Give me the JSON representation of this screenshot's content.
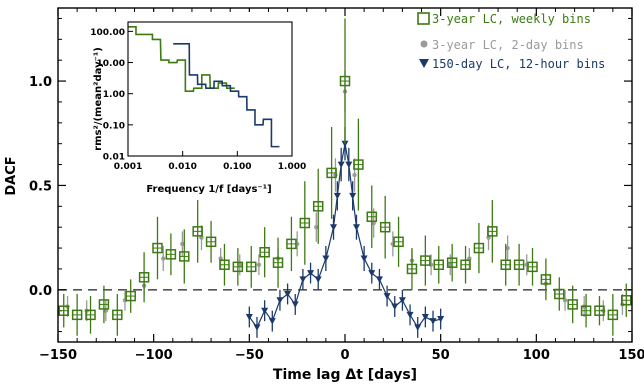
{
  "chart_data": [
    {
      "type": "scatter",
      "xlabel": "Time lag Δt  [days]",
      "ylabel": "DACF",
      "xlim": [
        -150,
        150
      ],
      "ylim": [
        -0.25,
        1.35
      ],
      "x_ticks": [
        -150,
        -100,
        -50,
        0,
        50,
        100,
        150
      ],
      "y_ticks": [
        0.0,
        0.5,
        1.0
      ],
      "y_tick_labels": [
        "0.0",
        "0.5",
        "1.0"
      ],
      "zero_line": 0,
      "legend_position": "top-right",
      "series": [
        {
          "name": "3-year LC, weekly bins",
          "marker": "open-square",
          "color": "#3d7a12",
          "x": [
            -147,
            -140,
            -133,
            -126,
            -119,
            -112,
            -105,
            -98,
            -91,
            -84,
            -77,
            -70,
            -63,
            -56,
            -49,
            -42,
            -35,
            -28,
            -21,
            -14,
            -7,
            0,
            7,
            14,
            21,
            28,
            35,
            42,
            49,
            56,
            63,
            70,
            77,
            84,
            91,
            98,
            105,
            112,
            119,
            126,
            133,
            140,
            147
          ],
          "y": [
            -0.1,
            -0.12,
            -0.12,
            -0.07,
            -0.12,
            -0.03,
            0.06,
            0.2,
            0.17,
            0.16,
            0.28,
            0.23,
            0.12,
            0.11,
            0.11,
            0.18,
            0.13,
            0.22,
            0.32,
            0.4,
            0.56,
            1.0,
            0.6,
            0.35,
            0.3,
            0.23,
            0.1,
            0.14,
            0.12,
            0.13,
            0.12,
            0.2,
            0.28,
            0.12,
            0.12,
            0.11,
            0.05,
            -0.02,
            -0.07,
            -0.1,
            -0.1,
            -0.12,
            -0.05
          ],
          "err": [
            0.08,
            0.1,
            0.09,
            0.09,
            0.1,
            0.08,
            0.12,
            0.15,
            0.1,
            0.13,
            0.15,
            0.1,
            0.1,
            0.09,
            0.1,
            0.12,
            0.12,
            0.13,
            0.2,
            0.18,
            0.22,
            0.3,
            0.22,
            0.15,
            0.15,
            0.12,
            0.1,
            0.12,
            0.09,
            0.09,
            0.09,
            0.12,
            0.15,
            0.1,
            0.1,
            0.09,
            0.1,
            0.08,
            0.09,
            0.08,
            0.07,
            0.1,
            0.08
          ]
        },
        {
          "name": "3-year LC, 2-day bins",
          "marker": "filled-circle",
          "color": "#9a9a9a",
          "x": [
            -145,
            -135,
            -125,
            -115,
            -105,
            -95,
            -85,
            -75,
            -65,
            -55,
            -45,
            -35,
            -25,
            -15,
            -5,
            0,
            5,
            15,
            25,
            35,
            45,
            55,
            65,
            75,
            85,
            95,
            105,
            115,
            125,
            135,
            145
          ],
          "y": [
            -0.08,
            -0.1,
            -0.1,
            -0.05,
            0.02,
            0.15,
            0.22,
            0.25,
            0.15,
            0.12,
            0.12,
            0.15,
            0.22,
            0.3,
            0.55,
            0.95,
            0.55,
            0.32,
            0.22,
            0.14,
            0.12,
            0.12,
            0.15,
            0.25,
            0.2,
            0.12,
            0.03,
            -0.05,
            -0.08,
            -0.1,
            -0.07
          ],
          "err": [
            0.05,
            0.05,
            0.05,
            0.05,
            0.05,
            0.06,
            0.06,
            0.06,
            0.05,
            0.05,
            0.05,
            0.05,
            0.06,
            0.07,
            0.08,
            0.1,
            0.08,
            0.07,
            0.06,
            0.05,
            0.05,
            0.05,
            0.05,
            0.06,
            0.06,
            0.05,
            0.05,
            0.05,
            0.05,
            0.05,
            0.05
          ]
        },
        {
          "name": "150-day LC, 12-hour bins",
          "marker": "filled-triangle-down",
          "color": "#1b3a6b",
          "x": [
            -50,
            -46,
            -42,
            -38,
            -34,
            -30,
            -26,
            -22,
            -18,
            -14,
            -10,
            -6,
            -4,
            -2,
            0,
            2,
            4,
            6,
            10,
            14,
            18,
            22,
            26,
            30,
            34,
            38,
            42,
            46,
            50
          ],
          "y": [
            -0.13,
            -0.18,
            -0.1,
            -0.15,
            -0.05,
            -0.02,
            -0.07,
            0.05,
            0.08,
            0.05,
            0.15,
            0.3,
            0.45,
            0.6,
            0.7,
            0.6,
            0.45,
            0.3,
            0.15,
            0.08,
            0.05,
            -0.03,
            -0.08,
            -0.05,
            -0.12,
            -0.18,
            -0.13,
            -0.15,
            -0.14
          ],
          "err": [
            0.05,
            0.05,
            0.05,
            0.05,
            0.05,
            0.05,
            0.05,
            0.05,
            0.05,
            0.05,
            0.06,
            0.06,
            0.07,
            0.08,
            0.08,
            0.08,
            0.07,
            0.06,
            0.06,
            0.05,
            0.05,
            0.05,
            0.05,
            0.05,
            0.05,
            0.05,
            0.05,
            0.05,
            0.05
          ]
        }
      ]
    },
    {
      "type": "line",
      "subtype": "step",
      "xscale": "log",
      "yscale": "log",
      "xlabel": "Frequency 1/f [days⁻¹]",
      "ylabel": "rms²/(mean²day⁻¹)",
      "xlim": [
        0.001,
        1.0
      ],
      "ylim": [
        0.01,
        200
      ],
      "x_ticks": [
        0.001,
        0.01,
        0.1,
        1.0
      ],
      "x_tick_labels": [
        "0.001",
        "0.010",
        "0.100",
        "1.000"
      ],
      "y_ticks": [
        0.01,
        0.1,
        1,
        10,
        100
      ],
      "y_tick_labels": [
        "0.01",
        "0.10",
        "1.00",
        "10.00",
        "100.00"
      ],
      "series": [
        {
          "name": "3-year LC, weekly bins",
          "color": "#3d7a12",
          "x": [
            0.001,
            0.0014,
            0.002,
            0.0028,
            0.004,
            0.0056,
            0.008,
            0.0112,
            0.016,
            0.0224,
            0.032,
            0.045,
            0.064
          ],
          "y": [
            140,
            80,
            80,
            55,
            12,
            10,
            12,
            1.2,
            1.5,
            4,
            1.5,
            2.2,
            1.5
          ]
        },
        {
          "name": "150-day LC, 12-hour bins",
          "color": "#1b3a6b",
          "x": [
            0.0067,
            0.0094,
            0.0133,
            0.0188,
            0.0266,
            0.0376,
            0.053,
            0.075,
            0.106,
            0.15,
            0.21,
            0.3,
            0.42
          ],
          "y": [
            40,
            40,
            4,
            2,
            1.5,
            2.5,
            1.8,
            1.2,
            0.8,
            0.3,
            0.1,
            0.15,
            0.02
          ]
        }
      ]
    }
  ],
  "colors": {
    "weekly": "#3d7a12",
    "twoday": "#9a9a9a",
    "halfday": "#1b3a6b",
    "axis": "#000000",
    "zero_line": "#555555"
  }
}
